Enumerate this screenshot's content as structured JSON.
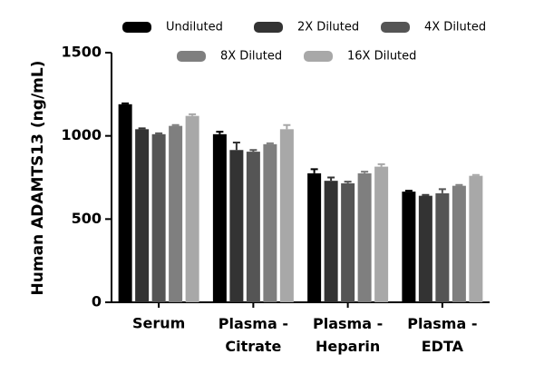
{
  "chart_data": {
    "type": "bar",
    "y_label": "Human ADAMTS13 (ng/mL)",
    "categories": [
      "Serum",
      "Plasma - Citrate",
      "Plasma - Heparin",
      "Plasma - EDTA"
    ],
    "series": [
      {
        "name": "Undiluted",
        "color": "#000000",
        "values": [
          1190,
          1010,
          775,
          665
        ],
        "errors": [
          5,
          15,
          25,
          5
        ]
      },
      {
        "name": "2X Diluted",
        "color": "#333333",
        "values": [
          1040,
          915,
          730,
          640
        ],
        "errors": [
          5,
          45,
          20,
          5
        ]
      },
      {
        "name": "4X Diluted",
        "color": "#555555",
        "values": [
          1010,
          905,
          715,
          655
        ],
        "errors": [
          5,
          10,
          10,
          25
        ]
      },
      {
        "name": "8X Diluted",
        "color": "#7f7f7f",
        "values": [
          1060,
          950,
          775,
          700
        ],
        "errors": [
          5,
          5,
          10,
          5
        ]
      },
      {
        "name": "16X Diluted",
        "color": "#a8a8a8",
        "values": [
          1120,
          1040,
          815,
          760
        ],
        "errors": [
          10,
          25,
          15,
          5
        ]
      }
    ],
    "ylim": [
      0,
      1500
    ],
    "yticks": [
      0,
      500,
      1000,
      1500
    ],
    "grid": false
  }
}
